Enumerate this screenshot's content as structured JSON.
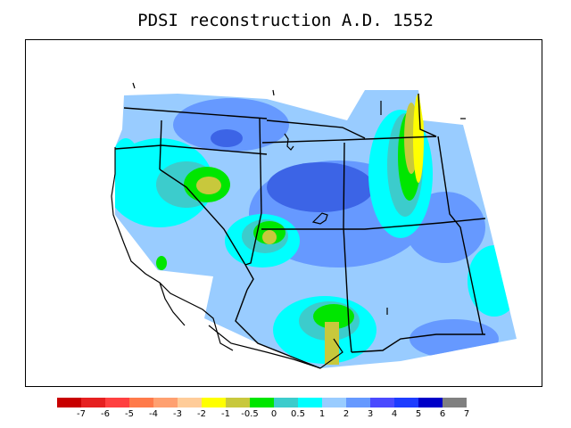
{
  "title": "PDSI reconstruction A.D. 1552",
  "legend": {
    "colors": [
      "#c80000",
      "#e62020",
      "#ff4040",
      "#ff7a4a",
      "#ffa070",
      "#ffcc99",
      "#ffff00",
      "#c8c83c",
      "#00e600",
      "#3ccccc",
      "#00ffff",
      "#99ccff",
      "#6699ff",
      "#4a4aff",
      "#1e3cff",
      "#0000c8",
      "#808080"
    ],
    "labels": [
      "-7",
      "-6",
      "-5",
      "-4",
      "-3",
      "-2",
      "-1",
      "-0.5",
      "0",
      "0.5",
      "1",
      "2",
      "3",
      "4",
      "5",
      "6",
      "7"
    ]
  },
  "palette": {
    "base": "#99ccff",
    "wet": "#6699ff",
    "very_wet": "#3c64e6",
    "near_normal": "#00ffff",
    "slight_wet": "#3ccccc",
    "normal": "#00e600",
    "slight_dry": "#c8c83c",
    "dry": "#ffff00"
  }
}
